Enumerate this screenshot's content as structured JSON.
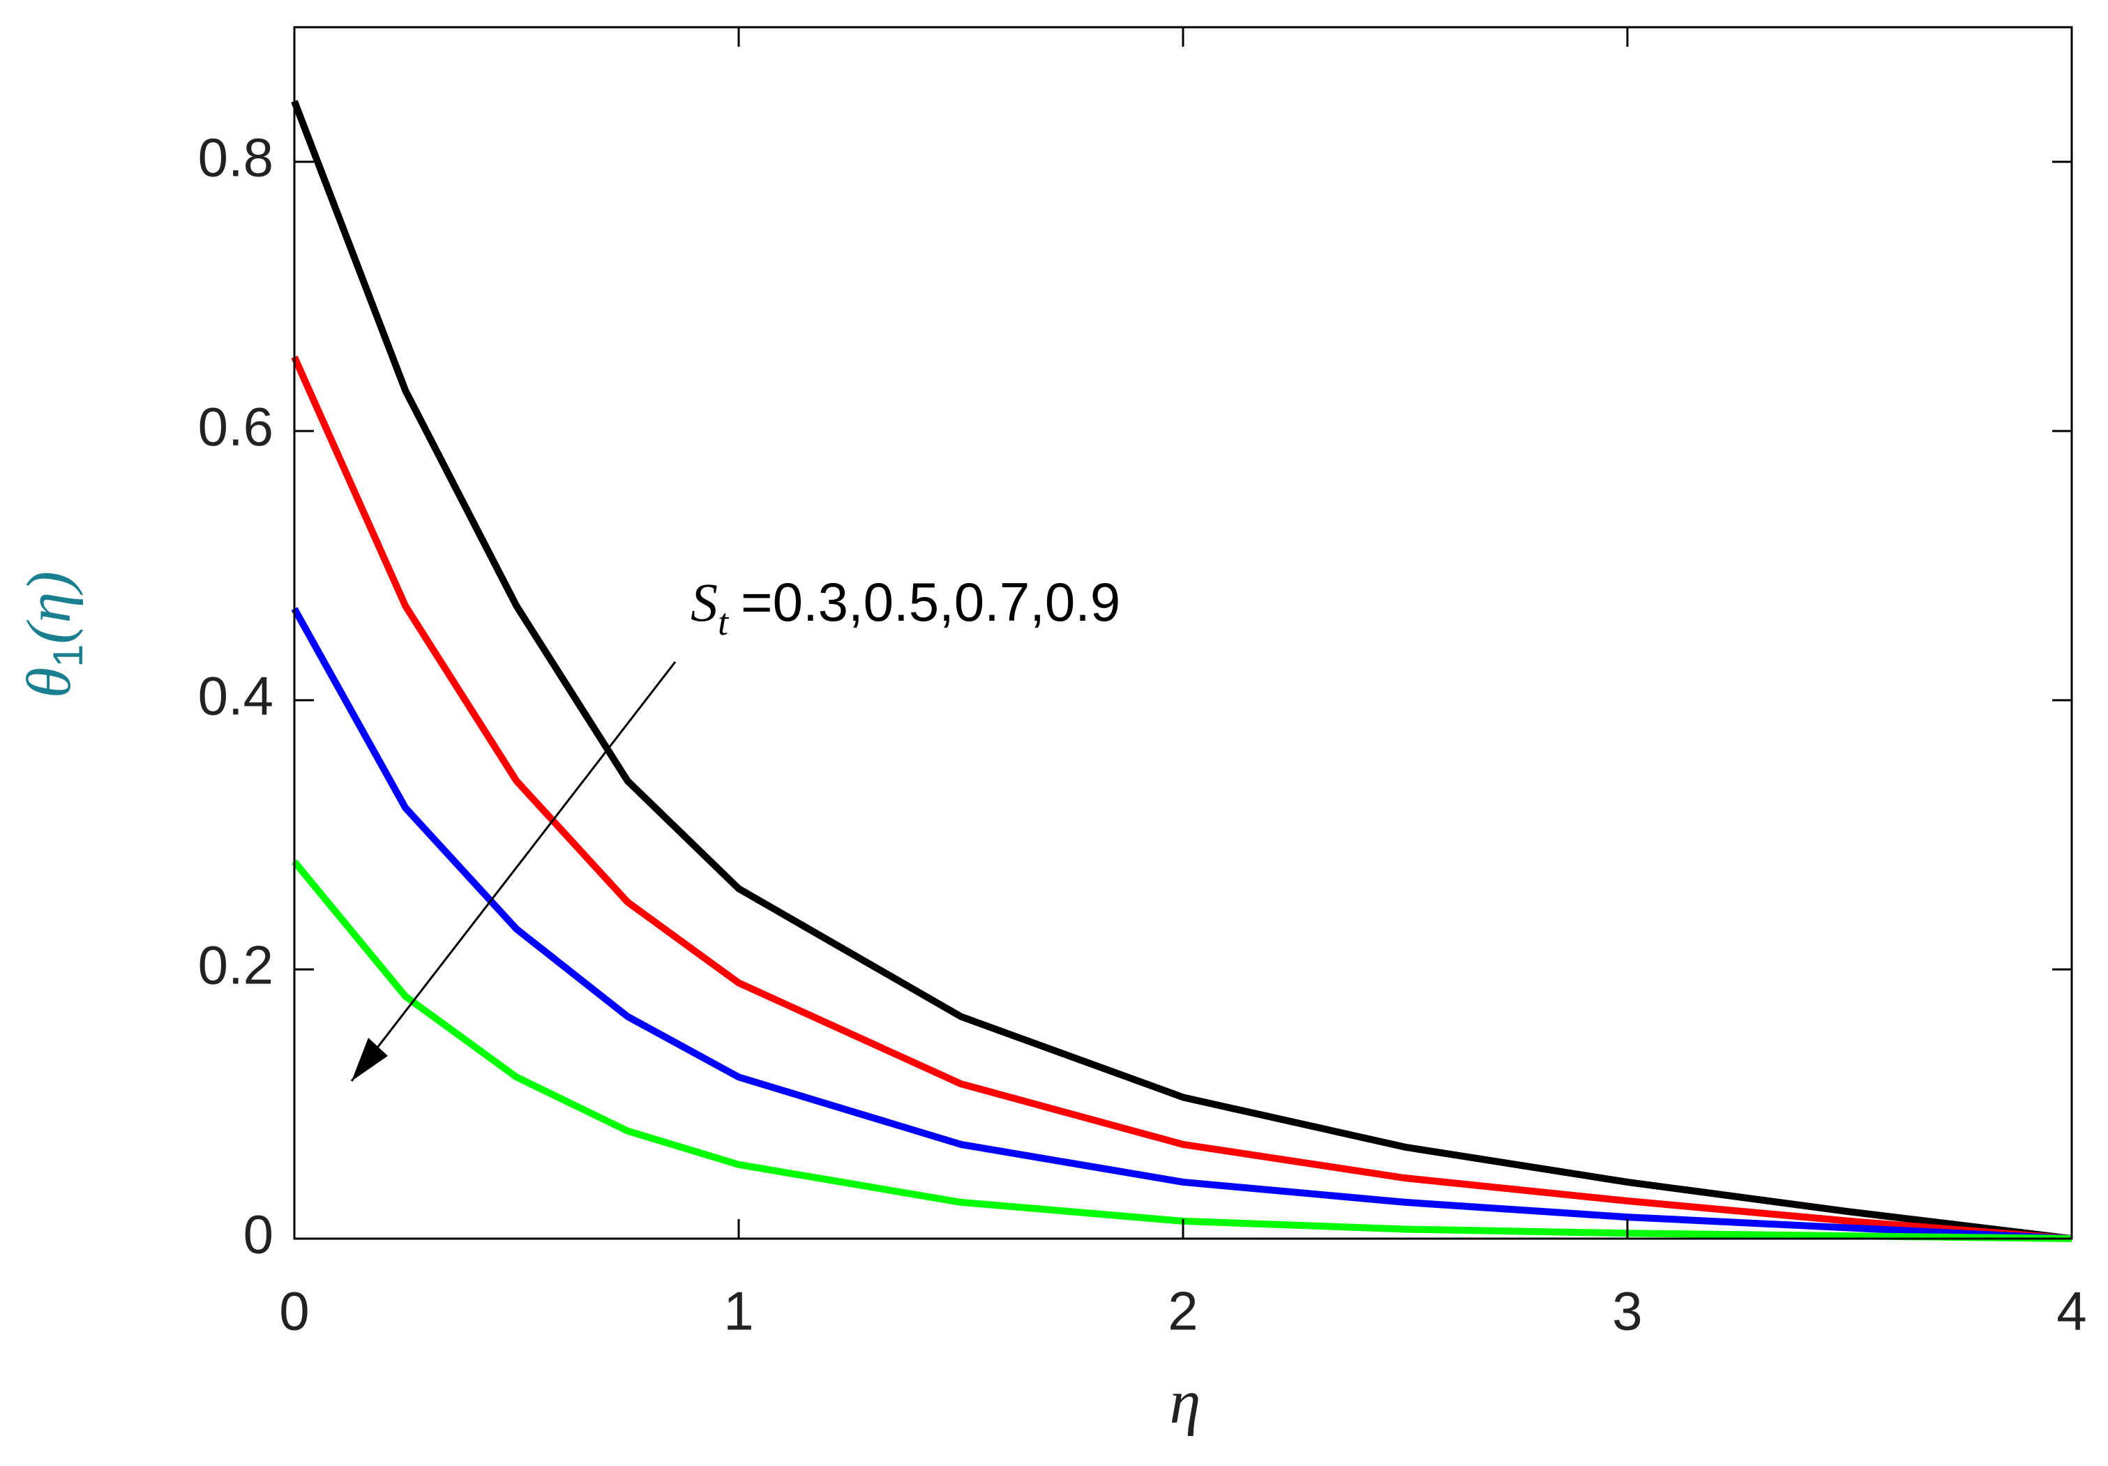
{
  "chart_data": {
    "type": "line",
    "x_label": "η",
    "y_label": {
      "symbol": "θ",
      "subscript": "1",
      "suffix": "(η)"
    },
    "annotation": {
      "symbol": "S",
      "subscript": "t",
      "text": "=0.3,0.5,0.7,0.9"
    },
    "x": [
      0,
      0.25,
      0.5,
      0.75,
      1,
      1.5,
      2,
      2.5,
      3,
      3.5,
      4
    ],
    "series": [
      {
        "color": "#000000",
        "values": [
          0.845,
          0.63,
          0.47,
          0.34,
          0.26,
          0.165,
          0.105,
          0.068,
          0.042,
          0.02,
          0
        ]
      },
      {
        "color": "#ff0000",
        "values": [
          0.655,
          0.47,
          0.34,
          0.25,
          0.19,
          0.115,
          0.07,
          0.045,
          0.028,
          0.013,
          0
        ]
      },
      {
        "color": "#0000ff",
        "values": [
          0.468,
          0.32,
          0.23,
          0.165,
          0.12,
          0.07,
          0.042,
          0.027,
          0.016,
          0.008,
          0
        ]
      },
      {
        "color": "#00ff00",
        "values": [
          0.28,
          0.18,
          0.12,
          0.08,
          0.055,
          0.027,
          0.013,
          0.007,
          0.004,
          0.002,
          0
        ]
      }
    ],
    "xlim": [
      0,
      4
    ],
    "xticks": [
      0,
      1,
      2,
      3,
      4
    ],
    "ylim": [
      0,
      0.9
    ],
    "yticks": [
      0,
      0.2,
      0.4,
      0.6,
      0.8
    ]
  }
}
